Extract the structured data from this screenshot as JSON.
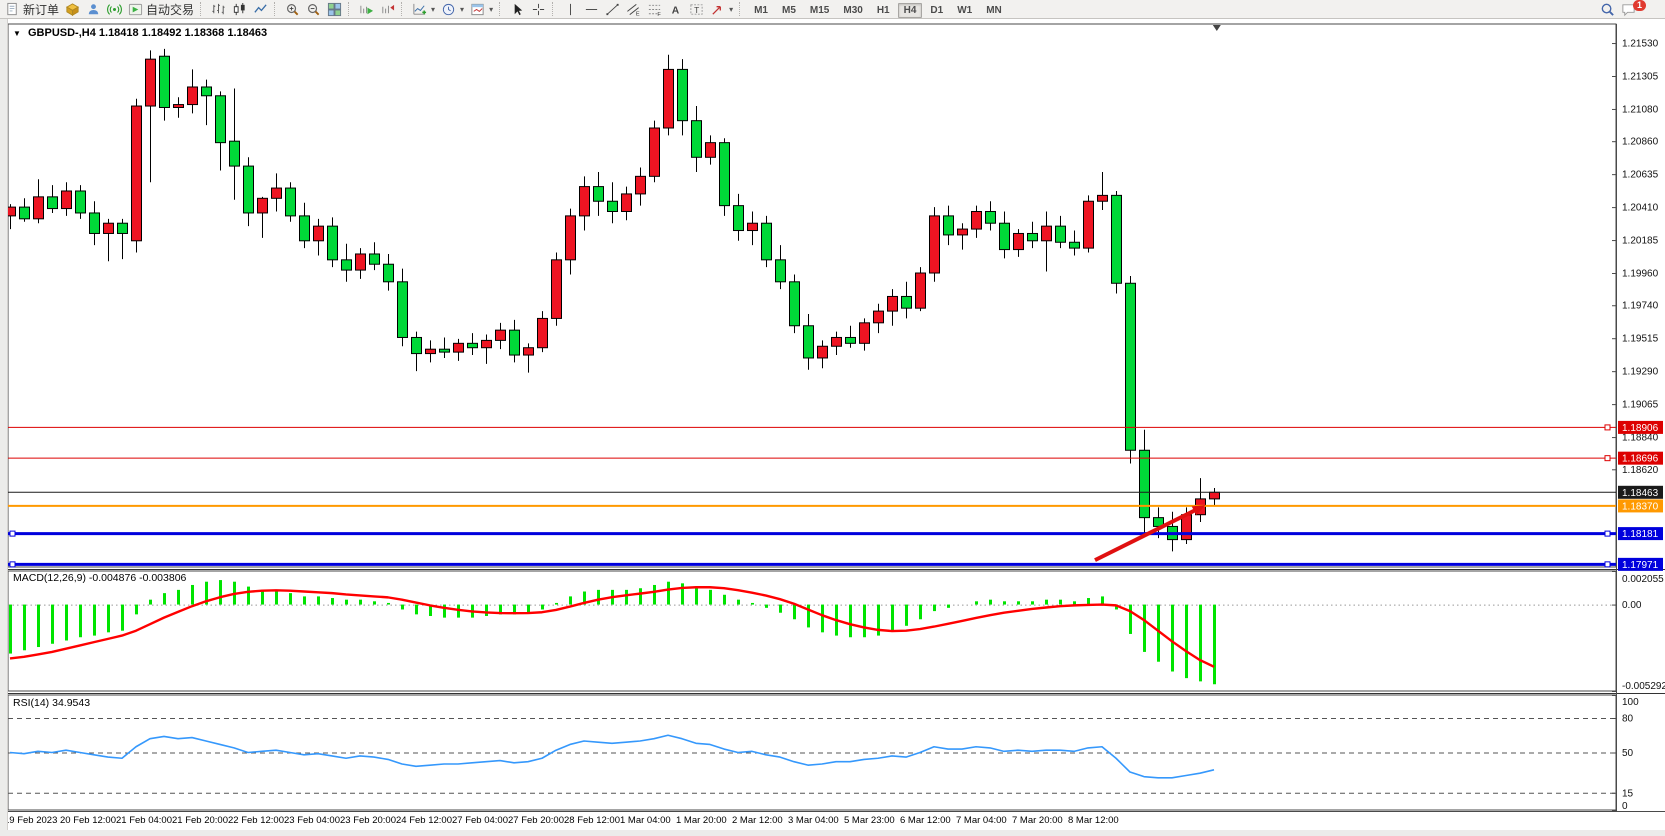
{
  "toolbar": {
    "new_order_label": "新订单",
    "auto_trading_label": "自动交易",
    "timeframes": [
      "M1",
      "M5",
      "M15",
      "M30",
      "H1",
      "H4",
      "D1",
      "W1",
      "MN"
    ],
    "active_timeframe": "H4",
    "notification_count": "1"
  },
  "chart": {
    "symbol_period": "GBPUSD-,H4",
    "ohlc_text": "1.18418 1.18492 1.18368 1.18463"
  },
  "indicators": {
    "macd_label": "MACD(12,26,9)",
    "macd_values": "-0.004876 -0.003806",
    "rsi_label": "RSI(14)",
    "rsi_value": "34.9543"
  },
  "chart_data": {
    "type": "candlestick",
    "symbol": "GBPUSD-",
    "period": "H4",
    "current_bar": {
      "open": 1.18418,
      "high": 1.18492,
      "low": 1.18368,
      "close": 1.18463
    },
    "colors": {
      "bull": "#ee1422",
      "bear": "#00d838",
      "wick": "#000000",
      "macd_histogram": "#00e400",
      "macd_signal": "#ff0000",
      "rsi_line": "#3598fc",
      "axis_text": "#111111",
      "frame": "#4a4a4a"
    },
    "price_axis": {
      "min": 1.17953,
      "max": 1.2166,
      "tick_labels": [
        "1.21530",
        "1.21305",
        "1.21080",
        "1.20860",
        "1.20635",
        "1.20410",
        "1.20185",
        "1.19960",
        "1.19740",
        "1.19515",
        "1.19290",
        "1.19065",
        "1.18840",
        "1.18620"
      ]
    },
    "time_labels": [
      "19 Feb 2023",
      "20 Feb 12:00",
      "21 Feb 04:00",
      "21 Feb 20:00",
      "22 Feb 12:00",
      "23 Feb 04:00",
      "23 Feb 20:00",
      "24 Feb 12:00",
      "27 Feb 04:00",
      "27 Feb 20:00",
      "28 Feb 12:00",
      "1 Mar 04:00",
      "1 Mar 20:00",
      "2 Mar 12:00",
      "3 Mar 04:00",
      "5 Mar 23:00",
      "6 Mar 12:00",
      "7 Mar 04:00",
      "7 Mar 20:00",
      "8 Mar 12:00"
    ],
    "candles": [
      [
        1.2035,
        1.2043,
        1.2026,
        1.2041
      ],
      [
        1.2041,
        1.2047,
        1.2031,
        1.2033
      ],
      [
        1.2033,
        1.206,
        1.203,
        1.2048
      ],
      [
        1.2048,
        1.2056,
        1.2037,
        1.204
      ],
      [
        1.204,
        1.2058,
        1.2035,
        1.2052
      ],
      [
        1.2052,
        1.2056,
        1.2033,
        1.2037
      ],
      [
        1.2037,
        1.2045,
        1.2015,
        1.2023
      ],
      [
        1.2023,
        1.2033,
        1.2004,
        1.203
      ],
      [
        1.203,
        1.2033,
        1.20055,
        1.2023
      ],
      [
        1.2018,
        1.2115,
        1.201,
        1.211
      ],
      [
        1.211,
        1.2148,
        1.2058,
        1.2142
      ],
      [
        1.2144,
        1.2149,
        1.21,
        1.2109
      ],
      [
        1.2109,
        1.2116,
        1.2102,
        1.2111
      ],
      [
        1.2111,
        1.2135,
        1.2105,
        1.2123
      ],
      [
        1.2123,
        1.2128,
        1.2097,
        1.2117
      ],
      [
        1.2117,
        1.212,
        1.2066,
        1.2085
      ],
      [
        1.2086,
        1.2122,
        1.2046,
        1.2069
      ],
      [
        1.2069,
        1.2075,
        1.2028,
        1.2037
      ],
      [
        1.2037,
        1.2048,
        1.202,
        1.2047
      ],
      [
        1.2047,
        1.2064,
        1.2038,
        1.2054
      ],
      [
        1.2054,
        1.2058,
        1.2031,
        1.2035
      ],
      [
        1.2035,
        1.2044,
        1.2013,
        1.2018
      ],
      [
        1.2018,
        1.2033,
        1.2008,
        1.2028
      ],
      [
        1.2028,
        1.2034,
        1.2,
        1.2005
      ],
      [
        1.2005,
        1.2016,
        1.199,
        1.1998
      ],
      [
        1.1998,
        1.2013,
        1.1992,
        1.2009
      ],
      [
        1.2009,
        1.2017,
        1.1998,
        1.2002
      ],
      [
        1.2002,
        1.2009,
        1.1984,
        1.199
      ],
      [
        1.199,
        1.1999,
        1.1946,
        1.1952
      ],
      [
        1.1952,
        1.1956,
        1.1929,
        1.1941
      ],
      [
        1.1941,
        1.195,
        1.1935,
        1.1944
      ],
      [
        1.1944,
        1.1952,
        1.1938,
        1.1942
      ],
      [
        1.1942,
        1.1951,
        1.1936,
        1.1948
      ],
      [
        1.1948,
        1.1955,
        1.194,
        1.1945
      ],
      [
        1.1945,
        1.1954,
        1.1934,
        1.195
      ],
      [
        1.195,
        1.1962,
        1.1944,
        1.1957
      ],
      [
        1.1957,
        1.1964,
        1.1935,
        1.194
      ],
      [
        1.194,
        1.1948,
        1.1928,
        1.1945
      ],
      [
        1.1945,
        1.197,
        1.1942,
        1.1965
      ],
      [
        1.1965,
        1.201,
        1.196,
        1.2005
      ],
      [
        1.2005,
        1.204,
        1.1995,
        1.2035
      ],
      [
        1.2035,
        1.2062,
        1.2025,
        1.2055
      ],
      [
        1.2055,
        1.2065,
        1.2035,
        1.2045
      ],
      [
        1.2045,
        1.2058,
        1.203,
        1.2038
      ],
      [
        1.2038,
        1.2055,
        1.2032,
        1.205
      ],
      [
        1.205,
        1.2068,
        1.2042,
        1.2062
      ],
      [
        1.2062,
        1.21,
        1.2058,
        1.2095
      ],
      [
        1.2095,
        1.2145,
        1.209,
        1.2135
      ],
      [
        1.2135,
        1.2142,
        1.209,
        1.21
      ],
      [
        1.21,
        1.211,
        1.2065,
        1.2075
      ],
      [
        1.2075,
        1.209,
        1.207,
        1.2085
      ],
      [
        1.2085,
        1.2088,
        1.2035,
        1.2042
      ],
      [
        1.2042,
        1.205,
        1.2018,
        1.2025
      ],
      [
        1.2025,
        1.2038,
        1.2015,
        1.203
      ],
      [
        1.203,
        1.2035,
        1.2,
        1.2005
      ],
      [
        1.2005,
        1.2015,
        1.1985,
        1.199
      ],
      [
        1.199,
        1.1995,
        1.1955,
        1.196
      ],
      [
        1.196,
        1.1968,
        1.193,
        1.1938
      ],
      [
        1.1938,
        1.195,
        1.1931,
        1.1946
      ],
      [
        1.1946,
        1.1956,
        1.194,
        1.1952
      ],
      [
        1.1952,
        1.196,
        1.1945,
        1.1948
      ],
      [
        1.1948,
        1.1965,
        1.1943,
        1.1962
      ],
      [
        1.1962,
        1.1975,
        1.1955,
        1.197
      ],
      [
        1.197,
        1.1985,
        1.196,
        1.198
      ],
      [
        1.198,
        1.199,
        1.1965,
        1.1972
      ],
      [
        1.1972,
        1.2,
        1.197,
        1.1996
      ],
      [
        1.1996,
        1.2041,
        1.199,
        1.2035
      ],
      [
        1.2035,
        1.2042,
        1.2015,
        1.2022
      ],
      [
        1.2022,
        1.203,
        1.2012,
        1.2026
      ],
      [
        1.2026,
        1.2042,
        1.202,
        1.2038
      ],
      [
        1.2038,
        1.2045,
        1.2025,
        1.203
      ],
      [
        1.203,
        1.2038,
        1.2006,
        1.2012
      ],
      [
        1.2012,
        1.2026,
        1.2007,
        1.2023
      ],
      [
        1.2023,
        1.2031,
        1.2013,
        1.2018
      ],
      [
        1.2018,
        1.2038,
        1.1997,
        1.2028
      ],
      [
        1.2028,
        1.2035,
        1.2013,
        1.2017
      ],
      [
        1.2017,
        1.2025,
        1.2008,
        1.2013
      ],
      [
        1.2013,
        1.2049,
        1.201,
        1.2045
      ],
      [
        1.2045,
        1.2065,
        1.2039,
        1.2049
      ],
      [
        1.2049,
        1.2052,
        1.1982,
        1.1989
      ],
      [
        1.1989,
        1.1994,
        1.1866,
        1.1875
      ],
      [
        1.1875,
        1.1889,
        1.1817,
        1.1829
      ],
      [
        1.1829,
        1.1836,
        1.1815,
        1.1823
      ],
      [
        1.1823,
        1.1833,
        1.1806,
        1.1814
      ],
      [
        1.1814,
        1.1836,
        1.1811,
        1.1831
      ],
      [
        1.1831,
        1.1856,
        1.1826,
        1.18418
      ],
      [
        1.18418,
        1.18492,
        1.18368,
        1.18463
      ]
    ],
    "hlines": [
      {
        "price": 1.18906,
        "label": "1.18906",
        "color": "#dd0000",
        "width": 1,
        "handles": "right"
      },
      {
        "price": 1.18696,
        "label": "1.18696",
        "color": "#dd0000",
        "width": 1,
        "handles": "right"
      },
      {
        "price": 1.18463,
        "label": "1.18463",
        "color": "#1a1a1a",
        "width": 1,
        "handles": "none"
      },
      {
        "price": 1.1837,
        "label": "1.18370",
        "color": "#ff9900",
        "width": 2,
        "handles": "none"
      },
      {
        "price": 1.18181,
        "label": "1.18181",
        "color": "#0000dd",
        "width": 3,
        "handles": "both"
      },
      {
        "price": 1.17971,
        "label": "1.17971",
        "color": "#0000dd",
        "width": 3,
        "handles": "both"
      }
    ],
    "trend_arrow": {
      "from_bar": 77.5,
      "from_price": 1.18,
      "to_bar": 85.4,
      "to_price": 1.18376,
      "color": "#e01010"
    },
    "shift_marker_bar": 86.2,
    "macd": {
      "label": "MACD(12,26,9)",
      "value": -0.004876,
      "signal_value": -0.003806,
      "axis": {
        "max": 0.002055,
        "min": -0.005292,
        "ticks": [
          {
            "v": 0.002055,
            "label": "0.002055"
          },
          {
            "v": 0,
            "label": "0.00"
          },
          {
            "v": -0.005292,
            "label": "-0.005292"
          }
        ]
      },
      "histogram": [
        -0.003,
        -0.0028,
        -0.0026,
        -0.0024,
        -0.0022,
        -0.002,
        -0.0019,
        -0.0017,
        -0.0016,
        -0.0006,
        0.0003,
        0.0007,
        0.0009,
        0.0012,
        0.0014,
        0.0015,
        0.0014,
        0.0011,
        0.0009,
        0.0008,
        0.0007,
        0.0005,
        0.0005,
        0.0004,
        0.0003,
        0.0003,
        0.0002,
        0.0001,
        -0.0003,
        -0.0006,
        -0.0007,
        -0.0008,
        -0.0008,
        -0.0008,
        -0.0007,
        -0.0006,
        -0.0006,
        -0.0005,
        -0.0003,
        0.0001,
        0.0005,
        0.0008,
        0.0009,
        0.0009,
        0.0009,
        0.001,
        0.0012,
        0.0014,
        0.0013,
        0.0011,
        0.0009,
        0.0006,
        0.0003,
        0.0001,
        -0.0002,
        -0.0005,
        -0.0009,
        -0.0014,
        -0.0017,
        -0.0019,
        -0.002,
        -0.002,
        -0.0019,
        -0.0016,
        -0.0013,
        -0.0009,
        -0.0004,
        -0.0002,
        0.0,
        0.0002,
        0.0003,
        0.0002,
        0.0002,
        0.0002,
        0.0003,
        0.0003,
        0.0002,
        0.0004,
        0.0005,
        -0.0003,
        -0.0018,
        -0.0029,
        -0.0035,
        -0.0041,
        -0.0045,
        -0.0047,
        -0.004876
      ],
      "signal": [
        -0.0033,
        -0.0032,
        -0.00305,
        -0.0029,
        -0.0027,
        -0.0025,
        -0.0023,
        -0.0021,
        -0.0019,
        -0.0016,
        -0.0012,
        -0.0008,
        -0.00045,
        -0.0001,
        0.0002,
        0.00045,
        0.00065,
        0.00078,
        0.00085,
        0.00087,
        0.00085,
        0.0008,
        0.00075,
        0.0007,
        0.00062,
        0.00056,
        0.0005,
        0.00044,
        0.0003,
        0.00012,
        -5e-05,
        -0.0002,
        -0.00032,
        -0.00042,
        -0.00048,
        -0.00052,
        -0.00053,
        -0.00052,
        -0.00047,
        -0.00033,
        -0.00012,
        0.0001,
        0.0003,
        0.00045,
        0.00057,
        0.00067,
        0.00078,
        0.00092,
        0.00102,
        0.00106,
        0.00106,
        0.001,
        0.00088,
        0.00073,
        0.00055,
        0.00033,
        5e-05,
        -0.0003,
        -0.00065,
        -0.00095,
        -0.0012,
        -0.0014,
        -0.00155,
        -0.00162,
        -0.0016,
        -0.0015,
        -0.00135,
        -0.00118,
        -0.001,
        -0.00082,
        -0.00065,
        -0.0005,
        -0.00038,
        -0.00027,
        -0.00018,
        -0.0001,
        -5e-05,
        -2e-05,
        0.0,
        -5e-05,
        -0.0004,
        -0.00095,
        -0.0016,
        -0.00225,
        -0.00285,
        -0.0034,
        -0.003806
      ]
    },
    "rsi": {
      "label": "RSI(14)",
      "value": 34.9543,
      "axis": {
        "max": 100,
        "min": 0,
        "ticks": [
          {
            "v": 100,
            "label": "100"
          },
          {
            "v": 80,
            "label": "80",
            "dashed": true
          },
          {
            "v": 50,
            "label": "50",
            "dashed": true
          },
          {
            "v": 15,
            "label": "15",
            "dashed": true
          },
          {
            "v": 0,
            "label": "0"
          }
        ]
      },
      "values": [
        50,
        49,
        51,
        50,
        52,
        50,
        48,
        46,
        45,
        55,
        62,
        64,
        62,
        63,
        60,
        57,
        54,
        50,
        51,
        52,
        50,
        48,
        49,
        47,
        45,
        47,
        46,
        44,
        40,
        38,
        39,
        40,
        40,
        41,
        42,
        43,
        41,
        42,
        45,
        52,
        57,
        60,
        59,
        58,
        59,
        60,
        62,
        65,
        62,
        58,
        57,
        53,
        50,
        51,
        48,
        46,
        42,
        39,
        40,
        42,
        42,
        44,
        45,
        47,
        46,
        50,
        55,
        53,
        53,
        55,
        54,
        51,
        52,
        51,
        52,
        52,
        51,
        54,
        55,
        45,
        33,
        29,
        28,
        28,
        30,
        32,
        34.95
      ]
    }
  }
}
